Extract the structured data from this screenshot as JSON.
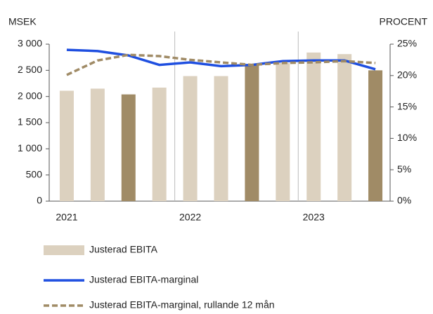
{
  "chart_data": {
    "type": "bar_line",
    "y_axis_label": "MSEK",
    "y2_axis_label": "PROCENT",
    "categories": [
      "2021",
      null,
      null,
      null,
      "2022",
      null,
      null,
      null,
      "2023",
      null,
      null
    ],
    "series": [
      {
        "name": "Justerad EBITA",
        "type": "bar",
        "color": "#dcd1bf",
        "colors": [
          "#dcd1bf",
          "#dcd1bf",
          "#a08b66",
          "#dcd1bf",
          "#dcd1bf",
          "#dcd1bf",
          "#a08b66",
          "#dcd1bf",
          "#dcd1bf",
          "#dcd1bf",
          "#a08b66"
        ],
        "values": [
          2110,
          2150,
          2040,
          2170,
          2390,
          2390,
          2620,
          2640,
          2840,
          2810,
          2500
        ]
      },
      {
        "name": "Justerad EBITA-marginal",
        "type": "line",
        "axis": "y2",
        "color": "#1f4fe0",
        "dashed": false,
        "values": [
          24.1,
          23.9,
          23.2,
          21.7,
          22.1,
          21.5,
          21.7,
          22.3,
          22.4,
          22.4,
          21.0
        ]
      },
      {
        "name": "Justerad EBITA-marginal, rullande 12 mån",
        "type": "line",
        "axis": "y2",
        "color": "#a08b66",
        "dashed": true,
        "values": [
          20.1,
          22.4,
          23.3,
          23.1,
          22.5,
          22.1,
          21.7,
          22.0,
          22.1,
          22.3,
          22.0
        ]
      }
    ],
    "ylim": [
      0,
      3000
    ],
    "yticks": [
      0,
      500,
      {
        "value": 1000,
        "label": "1 000"
      },
      {
        "value": 1500,
        "label": "1 500"
      },
      {
        "value": 2000,
        "label": "2 000"
      },
      {
        "value": 2500,
        "label": "2 500"
      },
      {
        "value": 3000,
        "label": "3 000"
      }
    ],
    "y2lim": [
      0,
      25
    ],
    "y2ticks": [
      {
        "value": 0,
        "label": "0%"
      },
      {
        "value": 5,
        "label": "5%"
      },
      {
        "value": 10,
        "label": "10%"
      },
      {
        "value": 15,
        "label": "15%"
      },
      {
        "value": 20,
        "label": "20%"
      },
      {
        "value": 25,
        "label": "25%"
      }
    ],
    "grid": false,
    "legend": "bottom"
  }
}
